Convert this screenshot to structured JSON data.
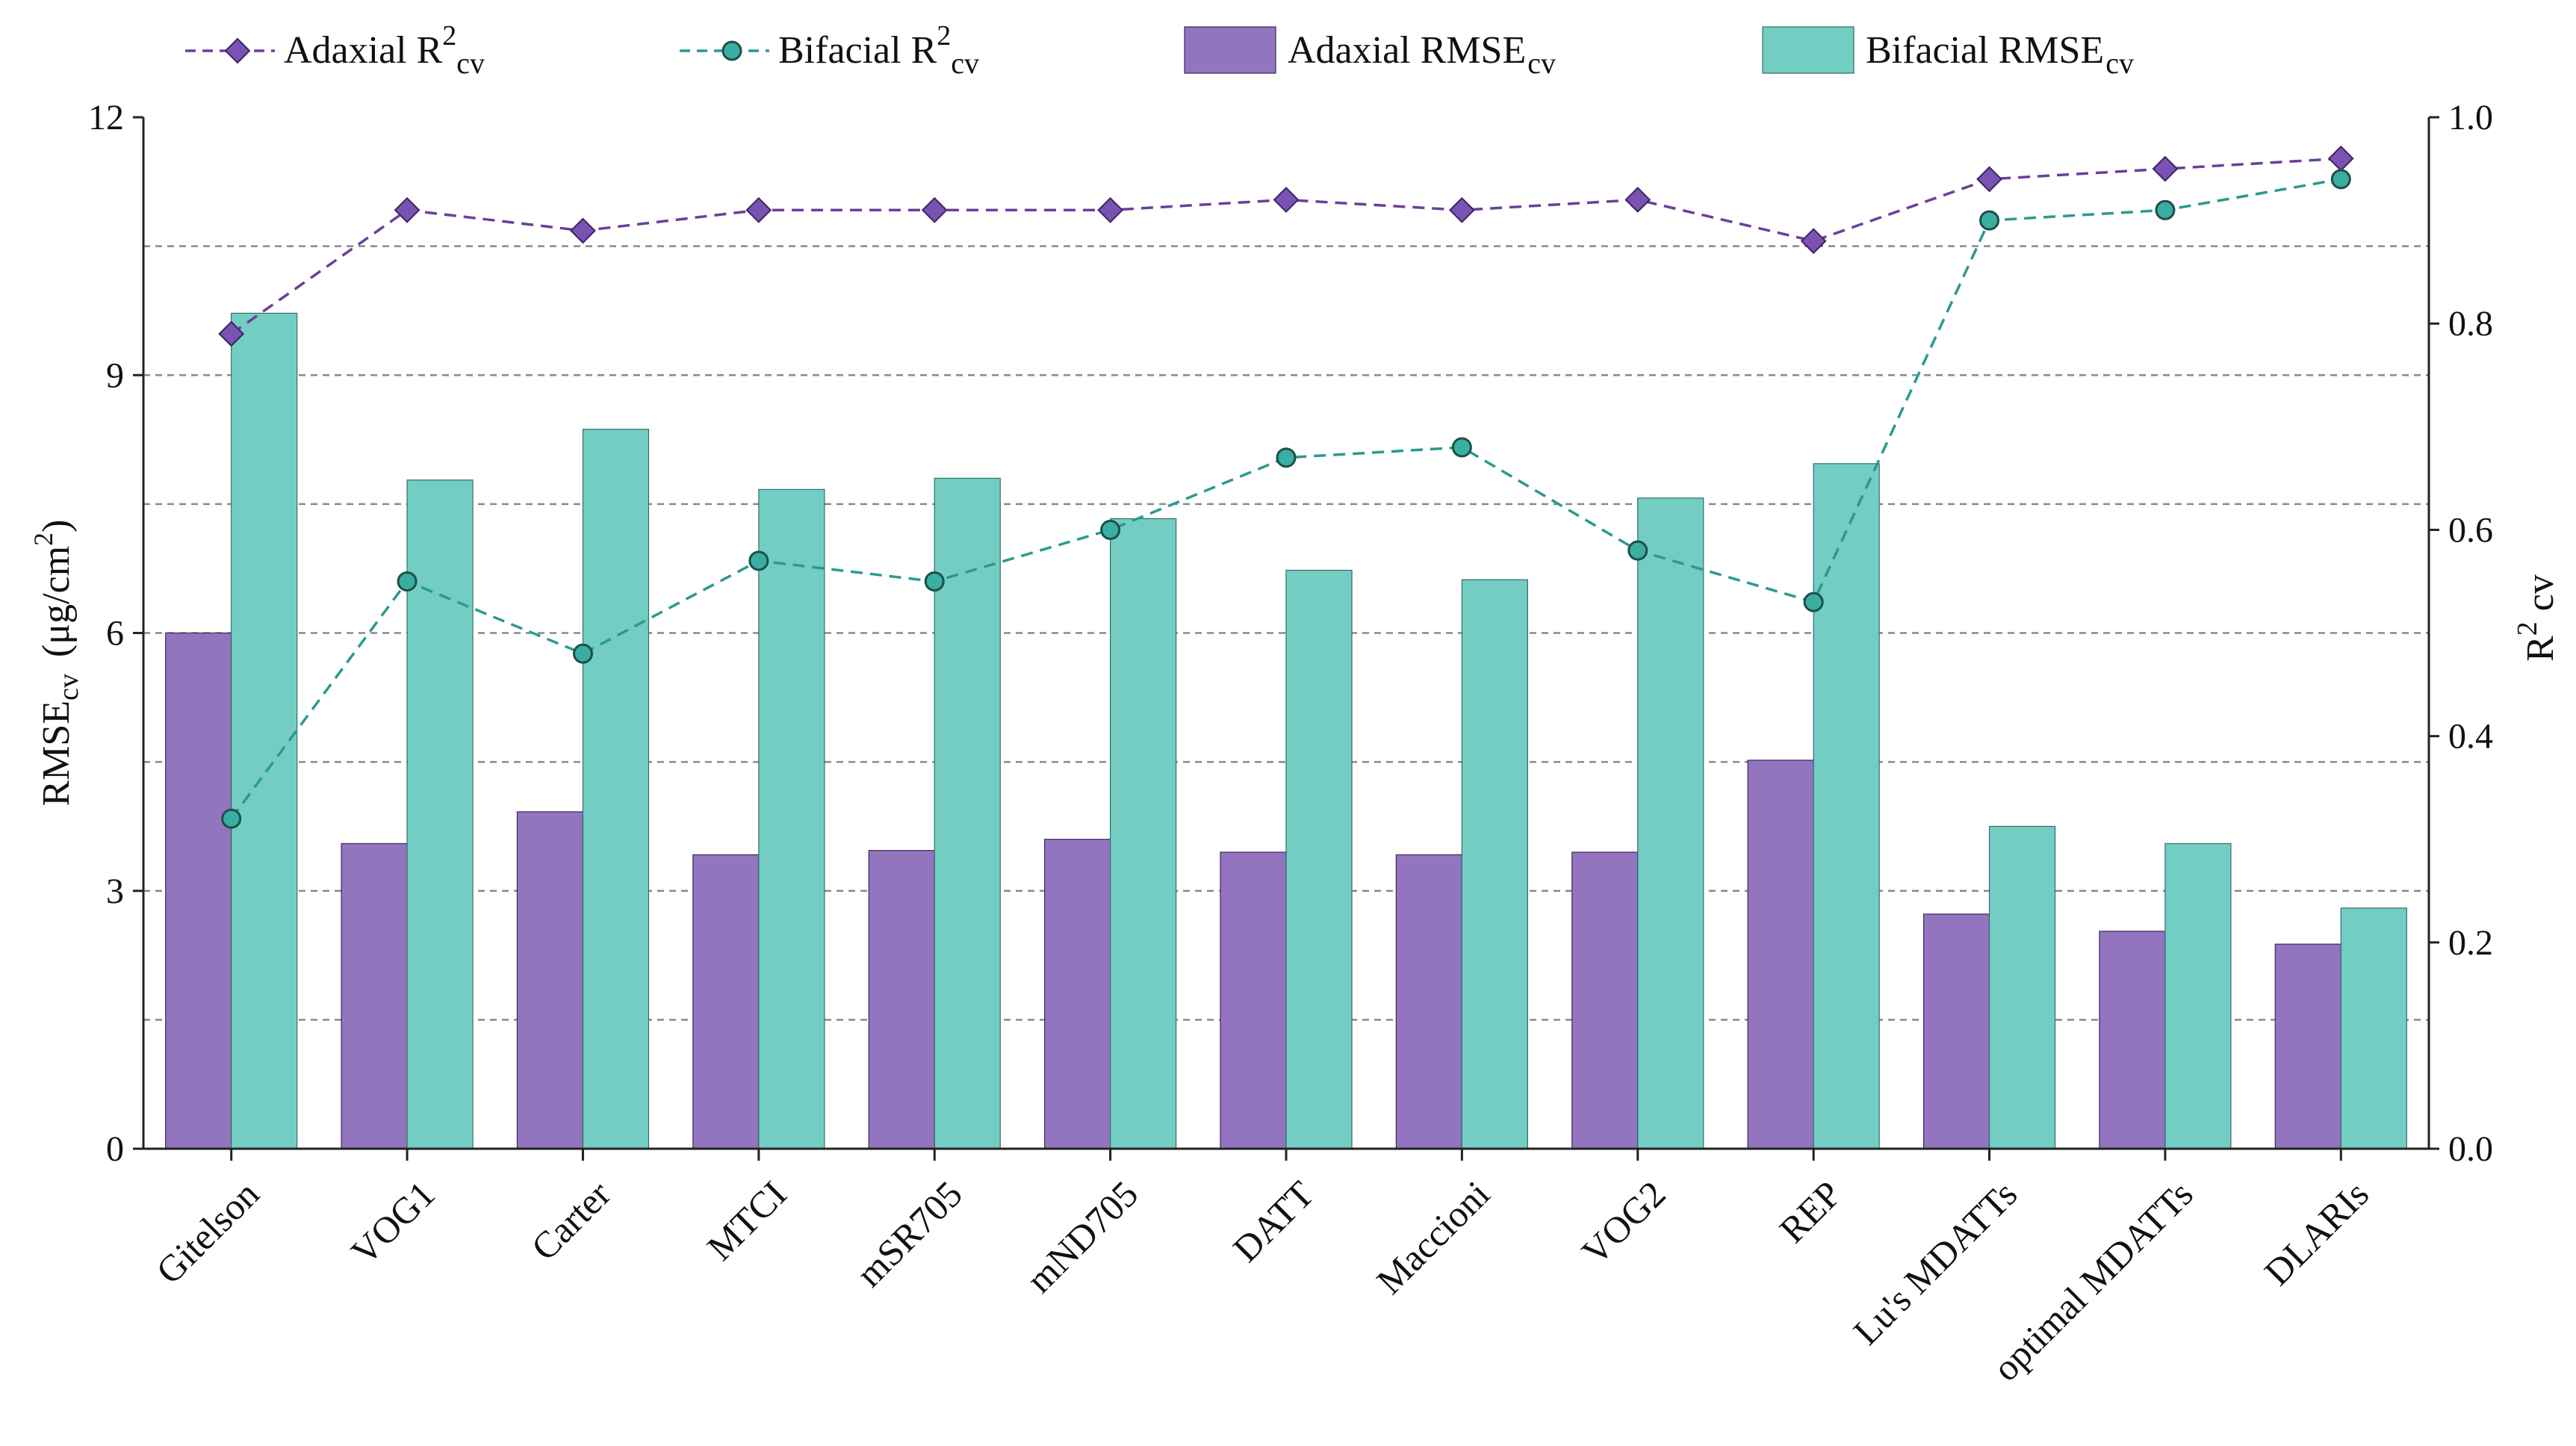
{
  "chart_data": {
    "type": "bar",
    "title": "",
    "categories": [
      "Gitelson",
      "VOG1",
      "Carter",
      "MTCI",
      "mSR705",
      "mND705",
      "DATT",
      "Maccioni",
      "VOG2",
      "REP",
      "Lu's MDATTs",
      "optimal MDATTs",
      "DLARIs"
    ],
    "series": [
      {
        "name": "Adaxial RMSEcv",
        "kind": "bar",
        "axis": "left",
        "color": "#9274bf",
        "values": [
          6.0,
          3.55,
          3.92,
          3.42,
          3.47,
          3.6,
          3.45,
          3.42,
          3.45,
          4.52,
          2.73,
          2.53,
          2.38
        ]
      },
      {
        "name": "Bifacial RMSEcv",
        "kind": "bar",
        "axis": "left",
        "color": "#74cdc3",
        "values": [
          9.72,
          7.78,
          8.37,
          7.67,
          7.8,
          7.33,
          6.73,
          6.62,
          7.57,
          7.97,
          3.75,
          3.55,
          2.8
        ]
      },
      {
        "name": "Adaxial R2cv",
        "kind": "line",
        "axis": "right",
        "color": "#6b3f9a",
        "values": [
          0.79,
          0.91,
          0.89,
          0.91,
          0.91,
          0.91,
          0.92,
          0.91,
          0.92,
          0.88,
          0.94,
          0.95,
          0.96
        ]
      },
      {
        "name": "Bifacial R2cv",
        "kind": "line",
        "axis": "right",
        "color": "#2a9a90",
        "values": [
          0.32,
          0.55,
          0.48,
          0.57,
          0.55,
          0.6,
          0.67,
          0.68,
          0.58,
          0.53,
          0.9,
          0.91,
          0.94
        ]
      }
    ],
    "y_left": {
      "label": "RMSEcv (μg/cm2)",
      "ylim": [
        0,
        12
      ],
      "ticks": [
        "0",
        "3",
        "6",
        "9",
        "12"
      ]
    },
    "y_right": {
      "label": "R2 cv",
      "ylim": [
        0.0,
        1.0
      ],
      "ticks": [
        "0.0",
        "0.2",
        "0.4",
        "0.6",
        "0.8",
        "1.0"
      ]
    },
    "grid_lines_right": [
      0.125,
      0.25,
      0.375,
      0.5,
      0.625,
      0.75,
      0.875
    ],
    "legend": {
      "position": "top",
      "items": [
        {
          "series": 2,
          "main": "Adaxial R",
          "sup": "2",
          "sub": "cv"
        },
        {
          "series": 3,
          "main": "Bifacial R",
          "sup": "2",
          "sub": "cv"
        },
        {
          "series": 0,
          "main": "Adaxial RMSE",
          "sup": "",
          "sub": "cv"
        },
        {
          "series": 1,
          "main": "Bifacial RMSE",
          "sup": "",
          "sub": "cv"
        }
      ]
    },
    "axis_titles": {
      "left_main": "RMSE",
      "left_sub": "cv",
      "left_unit": "(μg/cm",
      "left_unit_sup": "2",
      "left_unit_close": ")",
      "right_main": "R",
      "right_sup": "2",
      "right_sub": "cv"
    }
  }
}
